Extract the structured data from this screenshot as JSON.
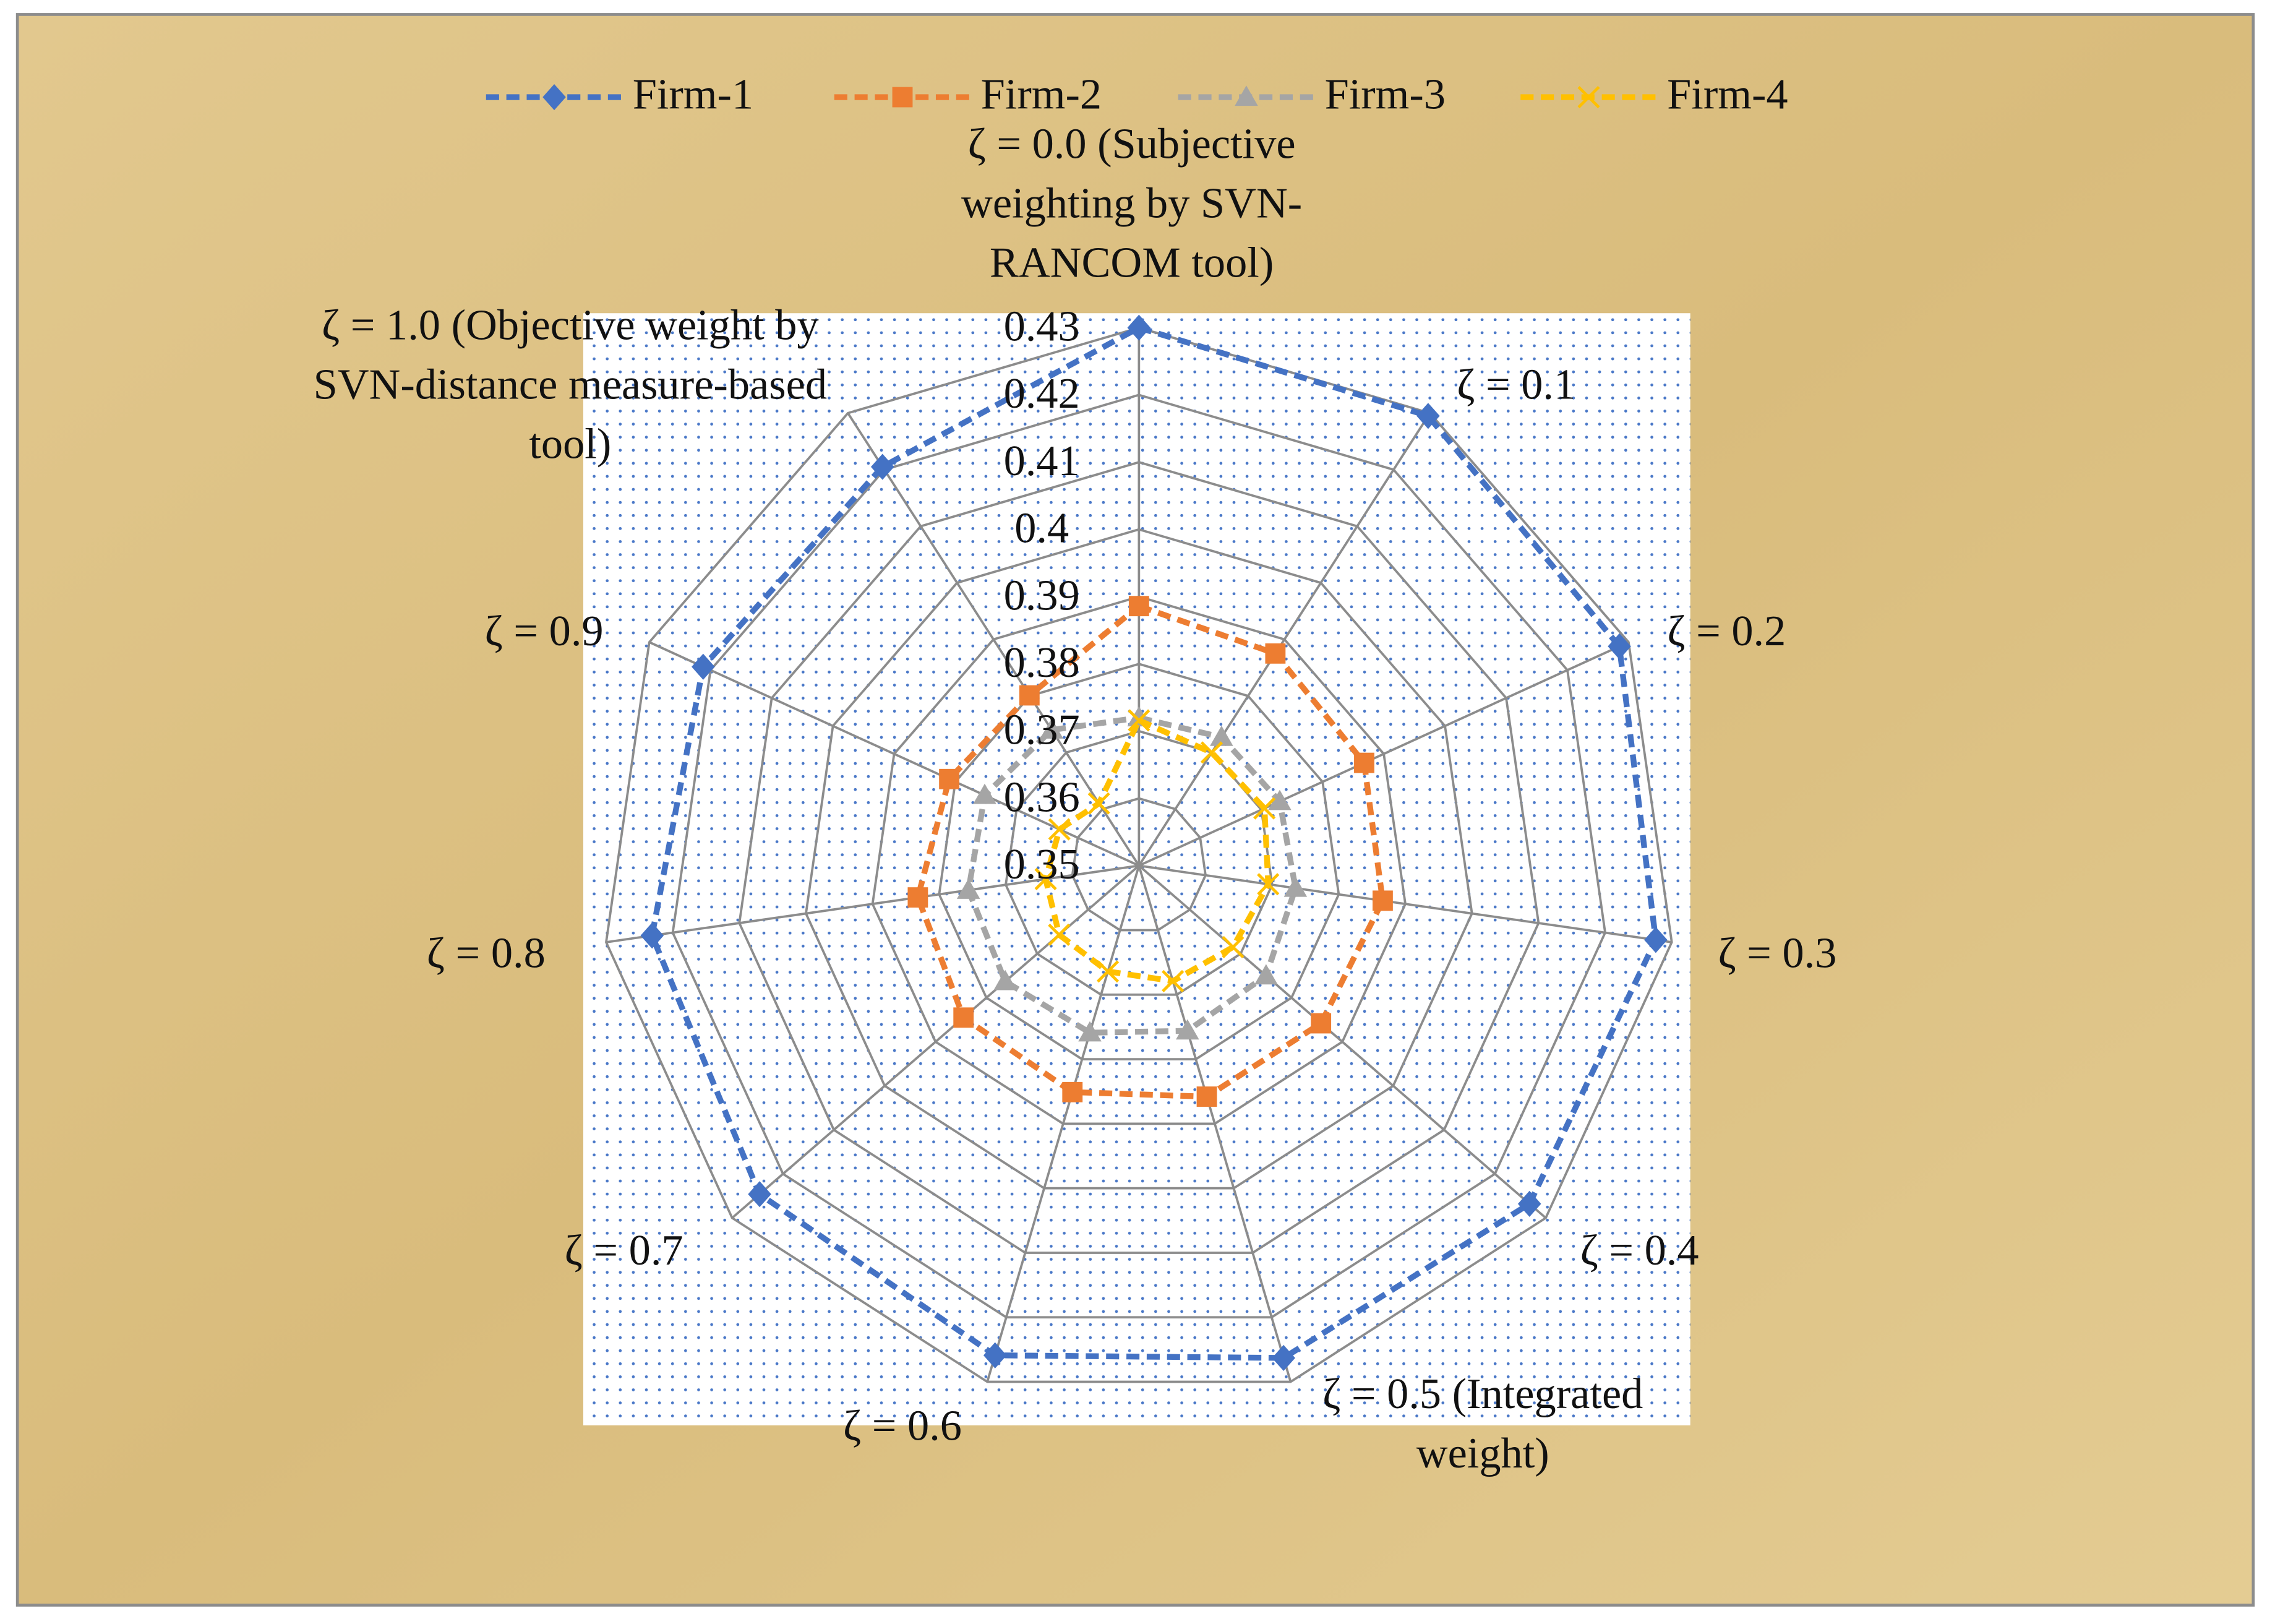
{
  "chart_data": {
    "type": "radar",
    "categories": [
      "ζ = 0.0 (Subjective weighting by SVN-RANCOM tool)",
      "ζ = 0.1",
      "ζ = 0.2",
      "ζ = 0.3",
      "ζ = 0.4",
      "ζ = 0.5 (Integrated weight)",
      "ζ = 0.6",
      "ζ = 0.7",
      "ζ = 0.8",
      "ζ = 0.9",
      "ζ = 1.0 (Objective weight by SVN-distance measure-based tool)"
    ],
    "series": [
      {
        "name": "Firm-1",
        "color": "#4472c4",
        "marker": "diamond",
        "values": [
          0.43,
          0.4295,
          0.4285,
          0.4276,
          0.4268,
          0.4263,
          0.4259,
          0.4246,
          0.4231,
          0.4212,
          0.4205
        ]
      },
      {
        "name": "Firm-2",
        "color": "#ed7d31",
        "marker": "square",
        "values": [
          0.3886,
          0.3875,
          0.3868,
          0.3866,
          0.3858,
          0.3858,
          0.3851,
          0.3845,
          0.3832,
          0.381,
          0.3801
        ]
      },
      {
        "name": "Firm-3",
        "color": "#a5a5a5",
        "marker": "triangle",
        "values": [
          0.372,
          0.3727,
          0.373,
          0.3735,
          0.375,
          0.3756,
          0.3759,
          0.3763,
          0.3756,
          0.3752,
          0.374
        ]
      },
      {
        "name": "Firm-4",
        "color": "#ffc000",
        "marker": "x",
        "values": [
          0.3716,
          0.37,
          0.3705,
          0.3694,
          0.3685,
          0.3679,
          0.3664,
          0.3657,
          0.364,
          0.363,
          0.361
        ]
      }
    ],
    "ylim": [
      0.35,
      0.43
    ],
    "yticks": [
      0.35,
      0.36,
      0.37,
      0.38,
      0.39,
      0.4,
      0.41,
      0.42,
      0.43
    ],
    "grid": true,
    "legend": "top",
    "line_style": "dashed"
  }
}
